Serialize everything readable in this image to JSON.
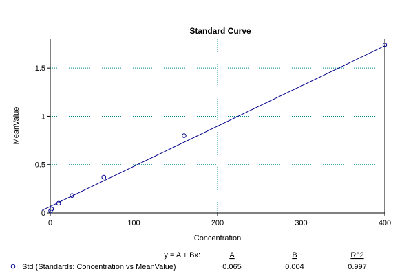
{
  "chart_data": {
    "type": "scatter",
    "title": "Standard Curve",
    "xlabel": "Concentration",
    "ylabel": "MeanValue",
    "xlim": [
      0,
      400
    ],
    "ylim": [
      0,
      1.8
    ],
    "x_ticks": [
      0,
      100,
      200,
      300,
      400
    ],
    "x_tick_labels": [
      "0",
      "100",
      "200",
      "300",
      "400"
    ],
    "y_ticks": [
      0,
      0.5,
      1,
      1.5
    ],
    "y_tick_labels": [
      "0",
      "0.5",
      "1",
      "1.5"
    ],
    "grid": true,
    "series": [
      {
        "name": "Std (Standards: Concentration vs MeanValue)",
        "x": [
          0.4,
          1.6,
          10,
          26,
          64,
          160,
          400
        ],
        "y": [
          0.02,
          0.04,
          0.1,
          0.18,
          0.37,
          0.8,
          1.74
        ]
      }
    ],
    "fit": {
      "equation": "y = A + Bx:",
      "A": 0.065,
      "B": 0.004,
      "x_range": [
        -10,
        400
      ],
      "y_end": 1.73
    },
    "stats_table": {
      "headers": [
        "A",
        "B",
        "R^2"
      ],
      "values": [
        "0.065",
        "0.004",
        "0.997"
      ]
    },
    "colors": {
      "fit_line": "#00008b",
      "grid": "#008b8b",
      "points": "#00008b",
      "axis": "#000000"
    }
  }
}
